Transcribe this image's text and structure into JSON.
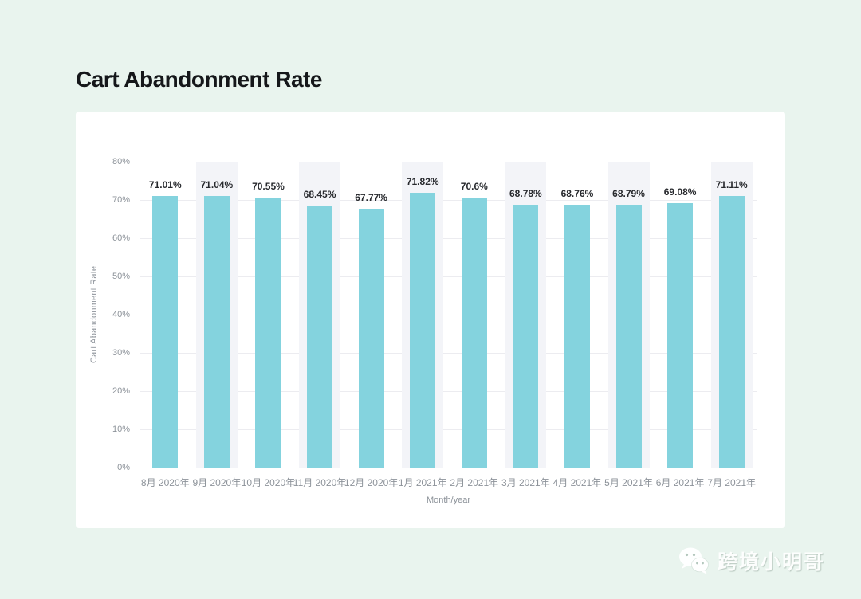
{
  "page": {
    "title": "Cart Abandonment Rate"
  },
  "colors": {
    "background": "#e9f4ee",
    "card": "#ffffff",
    "bar": "#84d3de",
    "column_band": "#f3f4f8",
    "gridline": "#ececf0",
    "tick_text": "#8d939a",
    "value_label_text": "#27292d",
    "title_text": "#15171a"
  },
  "chart_data": {
    "type": "bar",
    "title": "Cart Abandonment Rate",
    "xlabel": "Month/year",
    "ylabel": "Cart Abandonment Rate",
    "ylim": [
      0,
      80
    ],
    "y_ticks": [
      "0%",
      "10%",
      "20%",
      "30%",
      "40%",
      "50%",
      "60%",
      "70%",
      "80%"
    ],
    "grid": true,
    "legend": false,
    "categories": [
      "8月 2020年",
      "9月 2020年",
      "10月 2020年",
      "11月 2020年",
      "12月 2020年",
      "1月 2021年",
      "2月 2021年",
      "3月 2021年",
      "4月 2021年",
      "5月 2021年",
      "6月 2021年",
      "7月 2021年"
    ],
    "values": [
      71.01,
      71.04,
      70.55,
      68.45,
      67.77,
      71.82,
      70.6,
      68.78,
      68.76,
      68.79,
      69.08,
      71.11
    ],
    "value_labels": [
      "71.01%",
      "71.04%",
      "70.55%",
      "68.45%",
      "67.77%",
      "71.82%",
      "70.6%",
      "68.78%",
      "68.76%",
      "68.79%",
      "69.08%",
      "71.11%"
    ]
  },
  "watermark": {
    "icon": "wechat-icon",
    "text": "跨境小明哥"
  }
}
